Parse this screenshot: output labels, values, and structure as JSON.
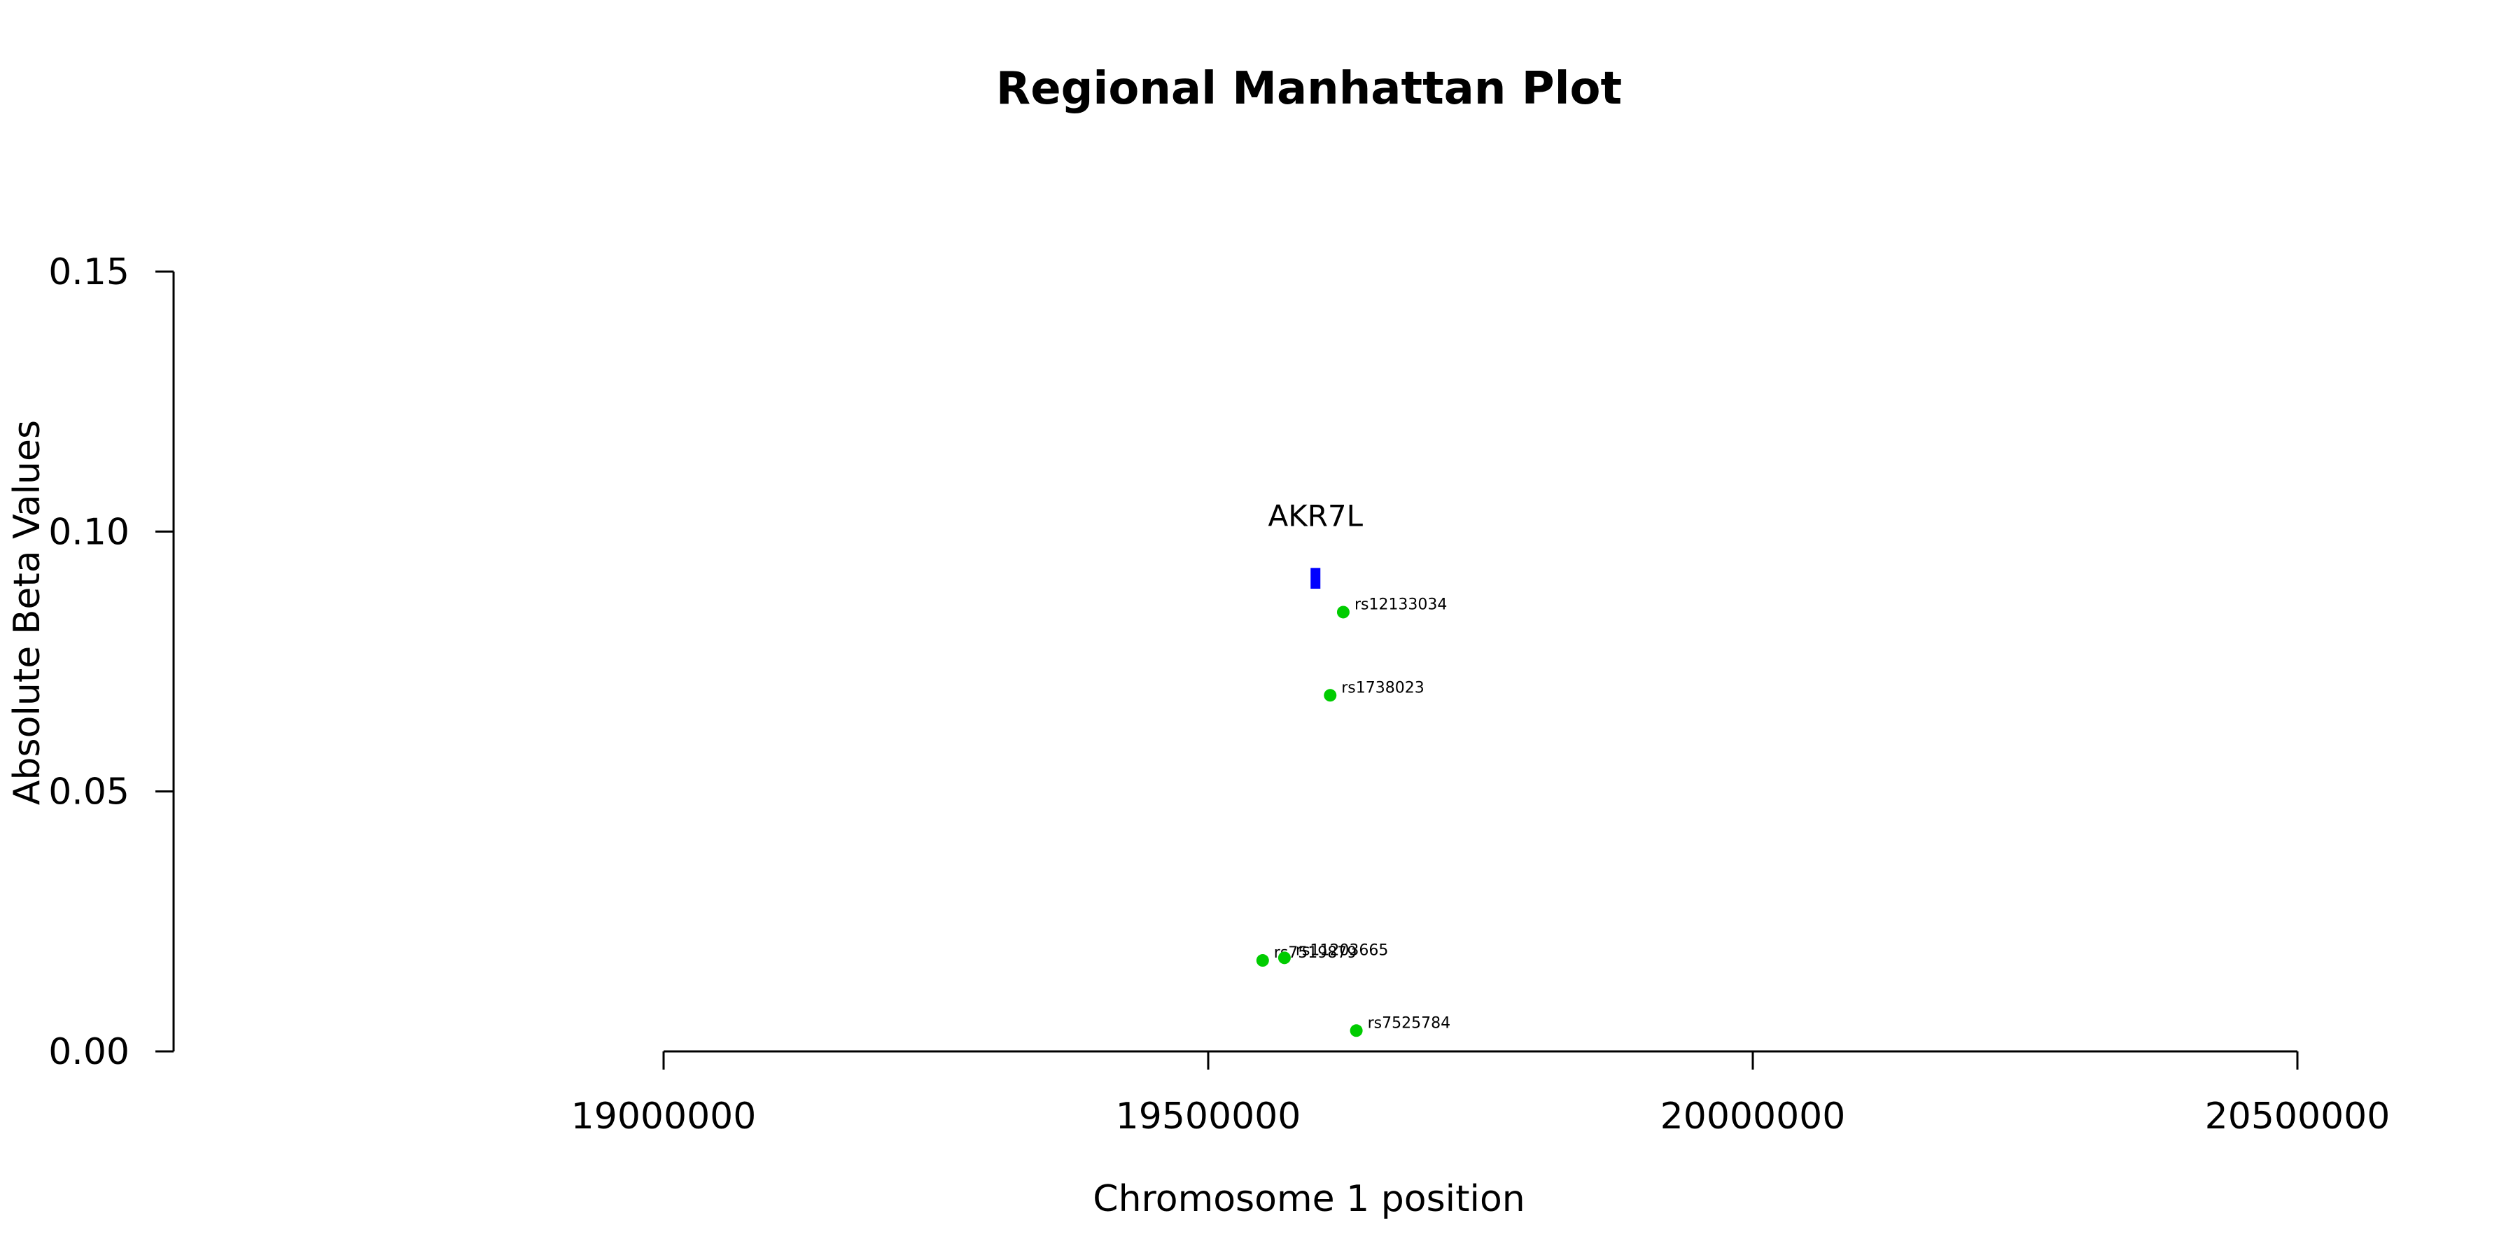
{
  "chart_data": {
    "type": "scatter",
    "title": "Regional Manhattan Plot",
    "xlabel": "Chromosome 1 position",
    "ylabel": "Absolute Beta Values",
    "xlim": [
      19000000,
      20500000
    ],
    "ylim": [
      0,
      0.15
    ],
    "x_ticks": [
      19000000,
      19500000,
      20000000,
      20500000
    ],
    "x_tick_labels": [
      "19000000",
      "19500000",
      "20000000",
      "20500000"
    ],
    "y_ticks": [
      0,
      0.05,
      0.1,
      0.15
    ],
    "y_tick_labels": [
      "0.00",
      "0.05",
      "0.10",
      "0.15"
    ],
    "grid": false,
    "gene": {
      "name": "AKR7L",
      "x_start": 19594000,
      "x_end": 19603000,
      "y_low": 0.089,
      "y_high": 0.093,
      "color": "#0000ff"
    },
    "point_color": "#00cc00",
    "points": [
      {
        "label": "rs12133034",
        "x": 19624000,
        "y": 0.0845
      },
      {
        "label": "rs1738023",
        "x": 19612000,
        "y": 0.0685
      },
      {
        "label": "rs7519879",
        "x": 19550000,
        "y": 0.0175
      },
      {
        "label": "rs11203665",
        "x": 19570000,
        "y": 0.018
      },
      {
        "label": "rs7525784",
        "x": 19636000,
        "y": 0.004
      }
    ]
  }
}
